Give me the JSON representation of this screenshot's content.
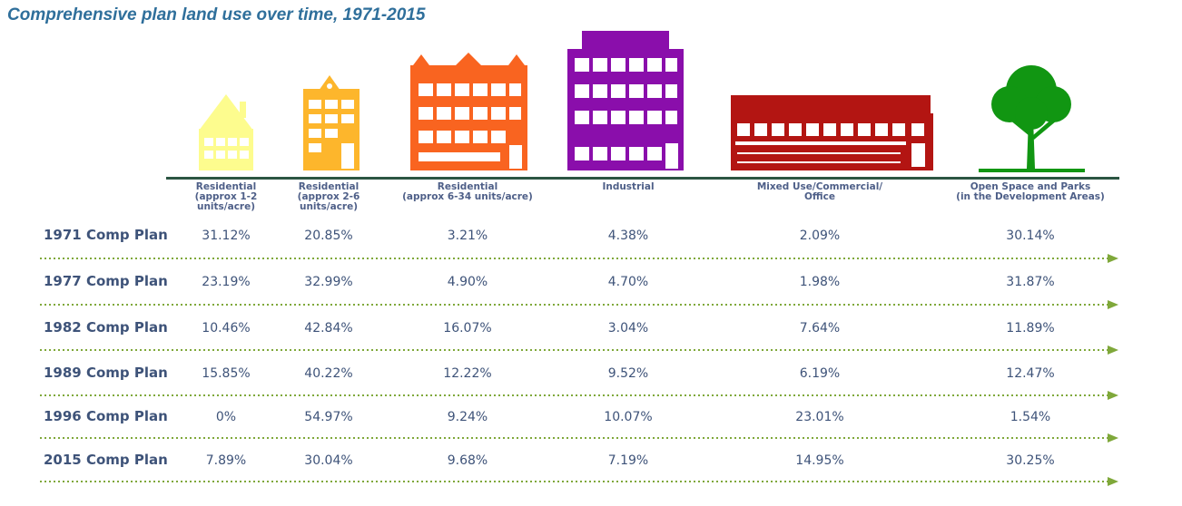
{
  "chart_data": {
    "type": "table",
    "title": "Comprehensive plan land use over time, 1971-2015",
    "columns": [
      {
        "label_lines": [
          "Residential",
          "(approx 1-2",
          "units/acre)"
        ],
        "icon": "small-house-icon",
        "color": "#fdfc8e"
      },
      {
        "label_lines": [
          "Residential",
          "(approx 2-6 units/acre)"
        ],
        "icon": "townhouse-icon",
        "color": "#fdb62c"
      },
      {
        "label_lines": [
          "Residential",
          "(approx 6-34 units/acre)"
        ],
        "icon": "apartment-building-icon",
        "color": "#f96420"
      },
      {
        "label_lines": [
          "Industrial"
        ],
        "icon": "industrial-building-icon",
        "color": "#8a0eab"
      },
      {
        "label_lines": [
          "Mixed Use/Commercial/",
          "Office"
        ],
        "icon": "commercial-building-icon",
        "color": "#b31512"
      },
      {
        "label_lines": [
          "Open Space and Parks",
          "(in the Development Areas)"
        ],
        "icon": "tree-icon",
        "color": "#119612"
      }
    ],
    "rows": [
      {
        "label": "1971 Comp Plan",
        "values": [
          "31.12%",
          "20.85%",
          "3.21%",
          "4.38%",
          "2.09%",
          "30.14%"
        ]
      },
      {
        "label": "1977 Comp Plan",
        "values": [
          "23.19%",
          "32.99%",
          "4.90%",
          "4.70%",
          "1.98%",
          "31.87%"
        ]
      },
      {
        "label": "1982 Comp Plan",
        "values": [
          "10.46%",
          "42.84%",
          "16.07%",
          "3.04%",
          "7.64%",
          "11.89%"
        ]
      },
      {
        "label": "1989 Comp Plan",
        "values": [
          "15.85%",
          "40.22%",
          "12.22%",
          "9.52%",
          "6.19%",
          "12.47%"
        ]
      },
      {
        "label": "1996 Comp Plan",
        "values": [
          "0%",
          "54.97%",
          "9.24%",
          "10.07%",
          "23.01%",
          "1.54%"
        ]
      },
      {
        "label": "2015 Comp Plan",
        "values": [
          "7.89%",
          "30.04%",
          "9.68%",
          "7.19%",
          "14.95%",
          "30.25%"
        ]
      }
    ],
    "separator_color": "#7fa83a"
  }
}
